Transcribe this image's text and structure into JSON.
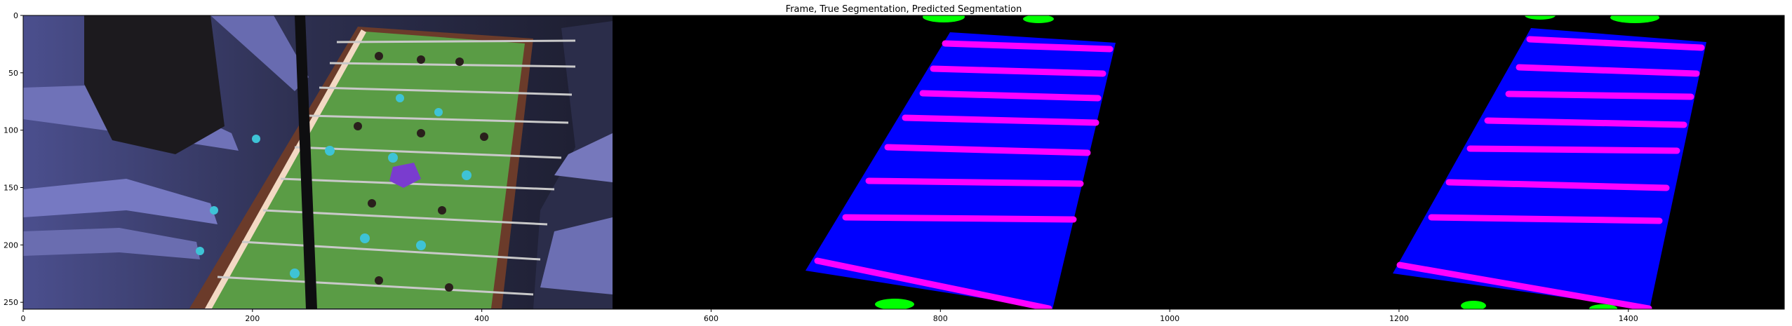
{
  "figure": {
    "title": "Frame, True Segmentation, Predicted Segmentation"
  },
  "axes": {
    "x": {
      "lim": [
        0,
        1536
      ],
      "ticks": [
        0,
        200,
        400,
        600,
        800,
        1000,
        1200,
        1400
      ]
    },
    "y": {
      "lim": [
        256,
        0
      ],
      "ticks": [
        0,
        50,
        100,
        150,
        200,
        250
      ]
    }
  },
  "panels": [
    {
      "name": "frame",
      "x_start": 0,
      "x_end": 512
    },
    {
      "name": "true-segmentation",
      "x_start": 512,
      "x_end": 1024
    },
    {
      "name": "predicted-segmentation",
      "x_start": 1024,
      "x_end": 1536
    }
  ],
  "colors": {
    "background_segment": "#000000",
    "table_segment": "#0000ff",
    "rod_segment": "#ff00ff",
    "ball_segment": "#00ff00"
  }
}
